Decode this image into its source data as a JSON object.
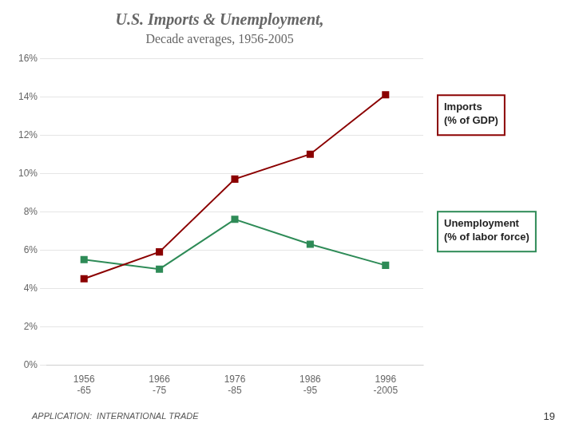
{
  "chart_data": {
    "type": "line",
    "title": "U.S. Imports & Unemployment,",
    "subtitle": "Decade averages, 1956-2005",
    "categories": [
      "1956\n-65",
      "1966\n-75",
      "1976\n-85",
      "1986\n-95",
      "1996\n-2005"
    ],
    "series": [
      {
        "name": "Imports\n(% of GDP)",
        "color": "#8B0000",
        "marker": "square",
        "line_style": "solid",
        "values": [
          4.5,
          5.9,
          9.7,
          11.0,
          14.1
        ]
      },
      {
        "name": "Unemployment\n(% of labor force)",
        "color": "#2E8B57",
        "marker": "square",
        "line_style": "solid",
        "values": [
          5.5,
          5.0,
          7.6,
          6.3,
          5.2
        ]
      }
    ],
    "ylim": [
      0,
      16
    ],
    "yticks": [
      {
        "value": 0,
        "label": "0%"
      },
      {
        "value": 2,
        "label": "2%"
      },
      {
        "value": 4,
        "label": "4%"
      },
      {
        "value": 6,
        "label": "6%"
      },
      {
        "value": 8,
        "label": "8%"
      },
      {
        "value": 10,
        "label": "10%"
      },
      {
        "value": 12,
        "label": "12%"
      },
      {
        "value": 14,
        "label": "14%"
      },
      {
        "value": 16,
        "label": "16%"
      }
    ],
    "grid": true,
    "legend": "right",
    "annotations": [
      "APPLICATION:  INTERNATIONAL TRADE",
      "19"
    ]
  }
}
